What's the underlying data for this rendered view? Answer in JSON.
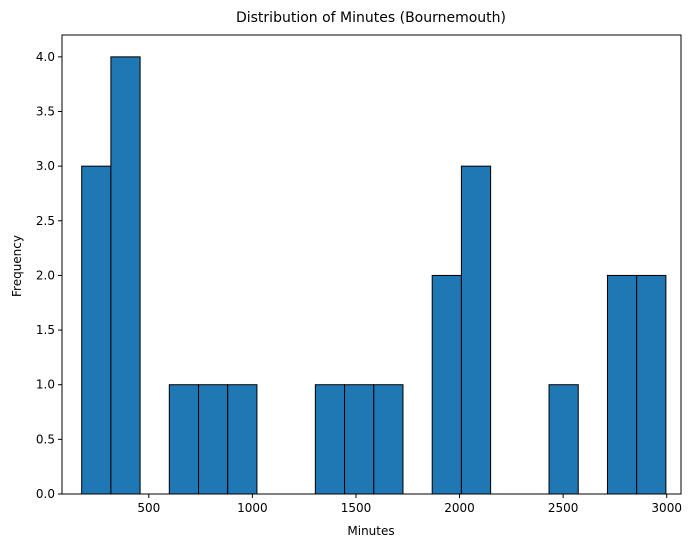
{
  "chart_data": {
    "type": "bar",
    "title": "Distribution of Minutes (Bournemouth)",
    "xlabel": "Minutes",
    "ylabel": "Frequency",
    "xlim": [
      81,
      3069
    ],
    "ylim": [
      0,
      4.2
    ],
    "x_ticks": [
      500,
      1000,
      1500,
      2000,
      2500,
      3000
    ],
    "x_tick_labels": [
      "500",
      "1000",
      "1500",
      "2000",
      "2500",
      "3000"
    ],
    "y_ticks": [
      0.0,
      0.5,
      1.0,
      1.5,
      2.0,
      2.5,
      3.0,
      3.5,
      4.0
    ],
    "y_tick_labels": [
      "0.0",
      "0.5",
      "1.0",
      "1.5",
      "2.0",
      "2.5",
      "3.0",
      "3.5",
      "4.0"
    ],
    "bin_edges": [
      176,
      317,
      458,
      599,
      740,
      881,
      1022,
      1163,
      1304,
      1445,
      1586,
      1727,
      1868,
      2009,
      2150,
      2291,
      2432,
      2573,
      2714,
      2855,
      2996
    ],
    "counts": [
      3,
      4,
      0,
      1,
      1,
      1,
      0,
      0,
      1,
      1,
      1,
      0,
      2,
      3,
      0,
      0,
      1,
      0,
      2,
      2
    ],
    "bar_color": "#1f77b4",
    "edge_color": "#000000",
    "grid": false
  }
}
